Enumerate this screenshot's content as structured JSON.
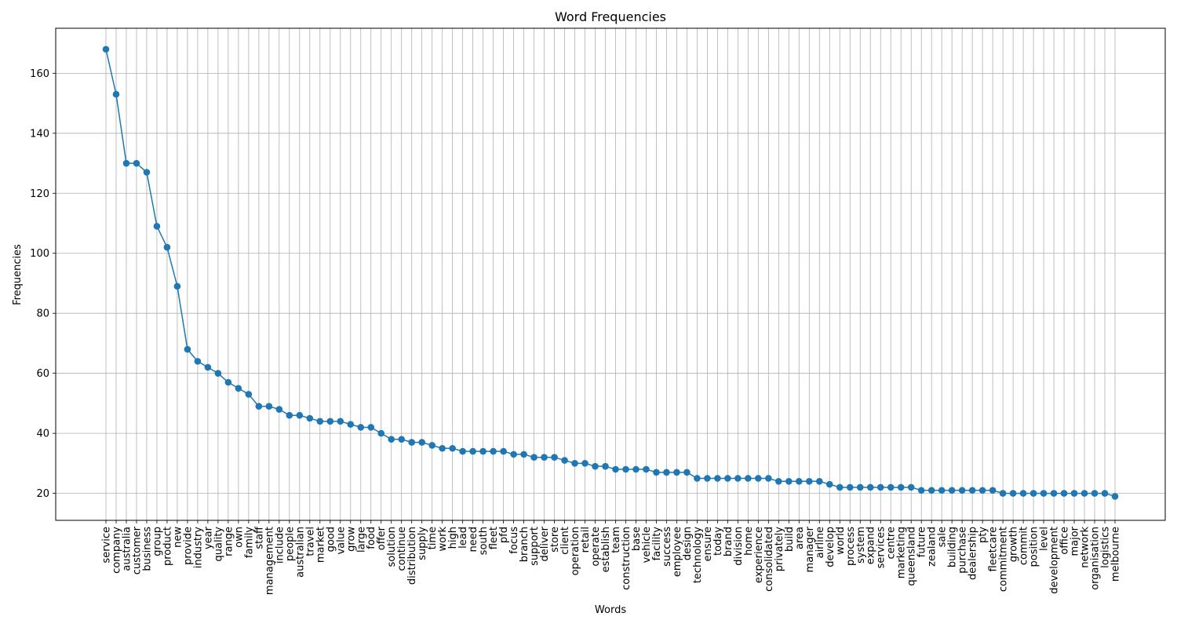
{
  "chart_data": {
    "type": "line",
    "title": "Word Frequencies",
    "xlabel": "Words",
    "ylabel": "Frequencies",
    "ylim": [
      11,
      175
    ],
    "yticks": [
      20,
      40,
      60,
      80,
      100,
      120,
      140,
      160
    ],
    "grid": true,
    "marker": "circle",
    "colors": {
      "series": "#1f77b4",
      "grid": "#b0b0b0",
      "axis": "#000000"
    },
    "categories": [
      "service",
      "company",
      "australia",
      "customer",
      "business",
      "group",
      "product",
      "new",
      "provide",
      "industry",
      "year",
      "quality",
      "range",
      "own",
      "family",
      "staff",
      "management",
      "include",
      "people",
      "australian",
      "travel",
      "market",
      "good",
      "value",
      "grow",
      "large",
      "food",
      "offer",
      "solution",
      "continue",
      "distribution",
      "supply",
      "time",
      "work",
      "high",
      "lead",
      "need",
      "south",
      "fleet",
      "pfd",
      "focus",
      "branch",
      "support",
      "deliver",
      "store",
      "client",
      "operation",
      "retail",
      "operate",
      "establish",
      "team",
      "construction",
      "base",
      "vehicle",
      "facility",
      "success",
      "employee",
      "design",
      "technology",
      "ensure",
      "today",
      "brand",
      "division",
      "home",
      "experience",
      "consolidated",
      "privately",
      "build",
      "area",
      "manager",
      "airline",
      "develop",
      "world",
      "process",
      "system",
      "expand",
      "services",
      "centre",
      "marketing",
      "queensland",
      "future",
      "zealand",
      "sale",
      "building",
      "purchase",
      "dealership",
      "pty",
      "fleetcare",
      "commitment",
      "growth",
      "commit",
      "position",
      "level",
      "development",
      "office",
      "major",
      "network",
      "organisation",
      "logistics",
      "melbourne"
    ],
    "values": [
      168,
      153,
      130,
      130,
      127,
      109,
      102,
      89,
      68,
      64,
      62,
      60,
      57,
      55,
      53,
      49,
      49,
      48,
      46,
      46,
      45,
      44,
      44,
      44,
      43,
      42,
      42,
      40,
      38,
      38,
      37,
      37,
      36,
      35,
      35,
      34,
      34,
      34,
      34,
      34,
      33,
      33,
      32,
      32,
      32,
      31,
      30,
      30,
      29,
      29,
      28,
      28,
      28,
      28,
      27,
      27,
      27,
      27,
      25,
      25,
      25,
      25,
      25,
      25,
      25,
      25,
      24,
      24,
      24,
      24,
      24,
      23,
      22,
      22,
      22,
      22,
      22,
      22,
      22,
      22,
      21,
      21,
      21,
      21,
      21,
      21,
      21,
      21,
      20,
      20,
      20,
      20,
      20,
      20,
      20,
      20,
      20,
      20,
      20,
      19
    ]
  }
}
